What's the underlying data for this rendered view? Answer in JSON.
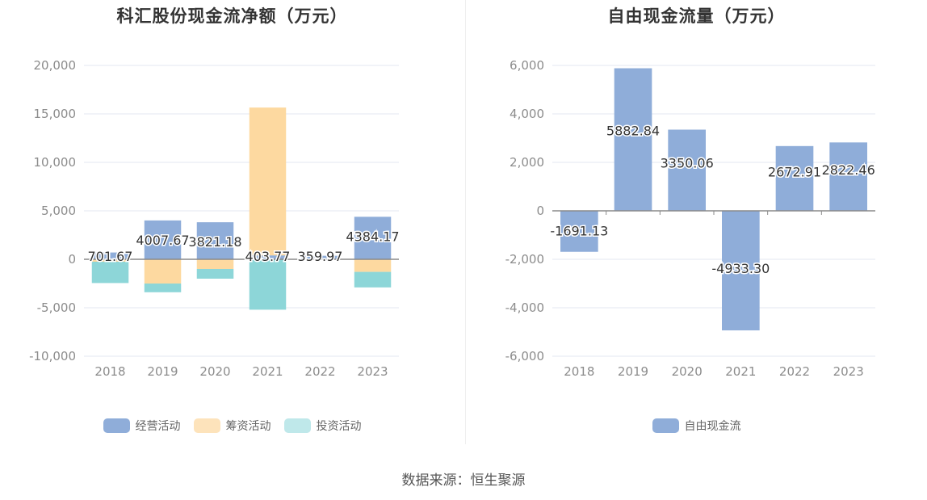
{
  "source_text": "数据来源：恒生聚源",
  "chart_data": [
    {
      "type": "bar",
      "stacked": true,
      "title": "科汇股份现金流净额（万元）",
      "categories": [
        "2018",
        "2019",
        "2020",
        "2021",
        "2022",
        "2023"
      ],
      "ylim": [
        -10000,
        20000
      ],
      "yticks": [
        20000,
        15000,
        10000,
        5000,
        0,
        -5000,
        -10000
      ],
      "ytick_labels": [
        "20,000",
        "15,000",
        "10,000",
        "5,000",
        "0",
        "-5,000",
        "-10,000"
      ],
      "grid": true,
      "legend_position": "bottom",
      "series": [
        {
          "name": "经营活动",
          "color": "#8fadd9",
          "values": [
            701.67,
            4007.67,
            3821.18,
            403.77,
            359.97,
            4384.17
          ]
        },
        {
          "name": "筹资活动",
          "color": "#fdd9a0",
          "values": [
            -250,
            -2500,
            -1000,
            15250,
            0,
            -1300
          ]
        },
        {
          "name": "投资活动",
          "color": "#8dd6d8",
          "values": [
            -2200,
            -900,
            -1000,
            -5200,
            0,
            -1600
          ]
        }
      ],
      "legend_colors": [
        "#8fadd9",
        "#fde3bb",
        "#bfe8ea"
      ],
      "data_labels": [
        "701.67",
        "4007.67",
        "3821.18",
        "403.77",
        "359.97",
        "4384.17"
      ]
    },
    {
      "type": "bar",
      "title": "自由现金流量（万元）",
      "categories": [
        "2018",
        "2019",
        "2020",
        "2021",
        "2022",
        "2023"
      ],
      "ylim": [
        -6000,
        6000
      ],
      "yticks": [
        6000,
        4000,
        2000,
        0,
        -2000,
        -4000,
        -6000
      ],
      "ytick_labels": [
        "6,000",
        "4,000",
        "2,000",
        "0",
        "-2,000",
        "-4,000",
        "-6,000"
      ],
      "grid": true,
      "legend_position": "bottom",
      "series": [
        {
          "name": "自由现金流",
          "color": "#8fadd9",
          "values": [
            -1691.13,
            5882.84,
            3350.06,
            -4933.3,
            2672.91,
            2822.46
          ]
        }
      ],
      "legend_colors": [
        "#8fadd9"
      ],
      "data_labels": [
        "-1691.13",
        "5882.84",
        "3350.06",
        "-4933.30",
        "2672.91",
        "2822.46"
      ]
    }
  ]
}
